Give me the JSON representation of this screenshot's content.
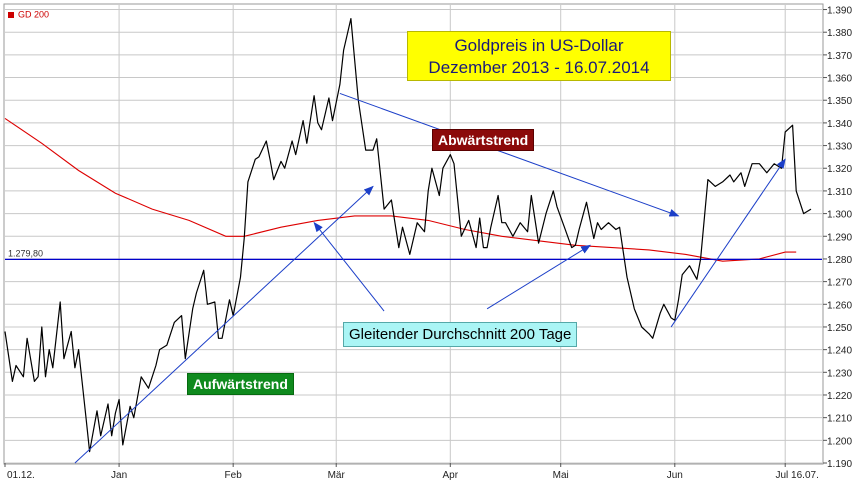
{
  "legend": {
    "label": "GD 200",
    "color": "#cc0000"
  },
  "title": {
    "line1": "Goldpreis in US-Dollar",
    "line2": "Dezember 2013 - 16.07.2014"
  },
  "annotations": {
    "downtrend": "Abwärtstrend",
    "uptrend": "Aufwärtstrend",
    "sma": "Gleitender Durchschnitt 200 Tage"
  },
  "colors": {
    "price": "#000000",
    "sma": "#dd0000",
    "hline": "#0000cc",
    "arrow": "#1c3fc8",
    "grid": "#c8c8c8"
  },
  "chart_data": {
    "type": "line",
    "x_tick_labels": [
      "01.12.",
      "Jan",
      "Feb",
      "Mär",
      "Apr",
      "Mai",
      "Jun",
      "Jul 16.07."
    ],
    "x_tick_days": [
      0,
      31,
      62,
      90,
      121,
      151,
      182,
      212
    ],
    "y_ticks": [
      1190,
      1200,
      1210,
      1220,
      1230,
      1240,
      1250,
      1260,
      1270,
      1280,
      1290,
      1300,
      1310,
      1320,
      1330,
      1340,
      1350,
      1360,
      1370,
      1380,
      1390
    ],
    "y_tick_labels": [
      "1.190",
      "1.200",
      "1.210",
      "1.220",
      "1.230",
      "1.240",
      "1.250",
      "1.260",
      "1.270",
      "1.280",
      "1.290",
      "1.300",
      "1.310",
      "1.320",
      "1.330",
      "1.340",
      "1.350",
      "1.360",
      "1.370",
      "1.380",
      "1.390"
    ],
    "ylim": [
      1190,
      1392
    ],
    "grid": true,
    "hline": {
      "value": 1279.8,
      "label": "1.279,80"
    },
    "series": [
      {
        "name": "GD 200",
        "color": "#dd0000",
        "points": [
          [
            0,
            1342
          ],
          [
            10,
            1331
          ],
          [
            20,
            1319
          ],
          [
            30,
            1309
          ],
          [
            40,
            1302
          ],
          [
            50,
            1297
          ],
          [
            60,
            1290
          ],
          [
            65,
            1290
          ],
          [
            75,
            1294
          ],
          [
            85,
            1297
          ],
          [
            95,
            1299
          ],
          [
            105,
            1299
          ],
          [
            115,
            1297
          ],
          [
            125,
            1293
          ],
          [
            135,
            1290
          ],
          [
            145,
            1288
          ],
          [
            155,
            1286
          ],
          [
            165,
            1285
          ],
          [
            175,
            1284
          ],
          [
            185,
            1282
          ],
          [
            195,
            1279
          ],
          [
            205,
            1280
          ],
          [
            212,
            1283
          ],
          [
            215,
            1283
          ]
        ]
      },
      {
        "name": "",
        "color": "#000000",
        "points": [
          [
            0,
            1248
          ],
          [
            2,
            1226
          ],
          [
            3,
            1233
          ],
          [
            5,
            1228
          ],
          [
            6,
            1245
          ],
          [
            8,
            1226
          ],
          [
            9,
            1228
          ],
          [
            10,
            1250
          ],
          [
            11,
            1228
          ],
          [
            12,
            1240
          ],
          [
            13,
            1232
          ],
          [
            15,
            1261
          ],
          [
            16,
            1236
          ],
          [
            18,
            1248
          ],
          [
            19,
            1232
          ],
          [
            20,
            1240
          ],
          [
            22,
            1210
          ],
          [
            23,
            1195
          ],
          [
            25,
            1213
          ],
          [
            26,
            1202
          ],
          [
            28,
            1216
          ],
          [
            29,
            1202
          ],
          [
            30,
            1212
          ],
          [
            31,
            1218
          ],
          [
            32,
            1198
          ],
          [
            34,
            1215
          ],
          [
            35,
            1210
          ],
          [
            37,
            1228
          ],
          [
            39,
            1223
          ],
          [
            41,
            1233
          ],
          [
            42,
            1240
          ],
          [
            44,
            1242
          ],
          [
            46,
            1252
          ],
          [
            48,
            1255
          ],
          [
            49,
            1236
          ],
          [
            51,
            1258
          ],
          [
            52,
            1265
          ],
          [
            54,
            1275
          ],
          [
            55,
            1260
          ],
          [
            57,
            1261
          ],
          [
            58,
            1245
          ],
          [
            59,
            1245
          ],
          [
            61,
            1262
          ],
          [
            62,
            1255
          ],
          [
            64,
            1272
          ],
          [
            65,
            1289
          ],
          [
            66,
            1314
          ],
          [
            68,
            1324
          ],
          [
            69,
            1325
          ],
          [
            71,
            1332
          ],
          [
            72,
            1324
          ],
          [
            73,
            1315
          ],
          [
            75,
            1323
          ],
          [
            76,
            1320
          ],
          [
            78,
            1332
          ],
          [
            79,
            1326
          ],
          [
            81,
            1341
          ],
          [
            82,
            1331
          ],
          [
            84,
            1352
          ],
          [
            85,
            1340
          ],
          [
            86,
            1337
          ],
          [
            88,
            1351
          ],
          [
            89,
            1341
          ],
          [
            91,
            1357
          ],
          [
            92,
            1372
          ],
          [
            94,
            1386
          ],
          [
            95,
            1368
          ],
          [
            96,
            1350
          ],
          [
            98,
            1328
          ],
          [
            100,
            1328
          ],
          [
            101,
            1333
          ],
          [
            103,
            1302
          ],
          [
            105,
            1306
          ],
          [
            107,
            1285
          ],
          [
            108,
            1294
          ],
          [
            110,
            1282
          ],
          [
            112,
            1296
          ],
          [
            114,
            1292
          ],
          [
            115,
            1310
          ],
          [
            116,
            1320
          ],
          [
            118,
            1308
          ],
          [
            119,
            1320
          ],
          [
            121,
            1326
          ],
          [
            122,
            1322
          ],
          [
            124,
            1290
          ],
          [
            126,
            1297
          ],
          [
            128,
            1285
          ],
          [
            129,
            1298
          ],
          [
            130,
            1285
          ],
          [
            131,
            1285
          ],
          [
            132,
            1294
          ],
          [
            134,
            1308
          ],
          [
            135,
            1296
          ],
          [
            136,
            1296
          ],
          [
            138,
            1290
          ],
          [
            140,
            1296
          ],
          [
            142,
            1292
          ],
          [
            143,
            1308
          ],
          [
            145,
            1287
          ],
          [
            147,
            1300
          ],
          [
            149,
            1310
          ],
          [
            150,
            1303
          ],
          [
            152,
            1294
          ],
          [
            154,
            1285
          ],
          [
            155,
            1286
          ],
          [
            156,
            1293
          ],
          [
            158,
            1305
          ],
          [
            160,
            1289
          ],
          [
            161,
            1296
          ],
          [
            162,
            1293
          ],
          [
            164,
            1296
          ],
          [
            166,
            1293
          ],
          [
            167,
            1294
          ],
          [
            169,
            1272
          ],
          [
            171,
            1258
          ],
          [
            173,
            1250
          ],
          [
            175,
            1247
          ],
          [
            176,
            1245
          ],
          [
            178,
            1256
          ],
          [
            179,
            1260
          ],
          [
            181,
            1254
          ],
          [
            182,
            1253
          ],
          [
            183,
            1262
          ],
          [
            184,
            1273
          ],
          [
            186,
            1277
          ],
          [
            188,
            1271
          ],
          [
            189,
            1280
          ],
          [
            191,
            1315
          ],
          [
            193,
            1312
          ],
          [
            195,
            1314
          ],
          [
            197,
            1317
          ],
          [
            198,
            1314
          ],
          [
            200,
            1318
          ],
          [
            201,
            1312
          ],
          [
            203,
            1322
          ],
          [
            205,
            1322
          ],
          [
            207,
            1318
          ],
          [
            209,
            1322
          ],
          [
            211,
            1320
          ],
          [
            212,
            1336
          ],
          [
            214,
            1339
          ],
          [
            215,
            1310
          ],
          [
            217,
            1300
          ],
          [
            219,
            1302
          ]
        ]
      }
    ],
    "annotations": [
      {
        "type": "arrow",
        "from": [
          91,
          1353
        ],
        "to": [
          183,
          1299
        ]
      },
      {
        "type": "arrow",
        "from": [
          19,
          1190
        ],
        "to": [
          100,
          1312
        ]
      },
      {
        "type": "arrow",
        "from": [
          181,
          1250
        ],
        "to": [
          212,
          1324
        ]
      },
      {
        "type": "arrow",
        "from": [
          103,
          1257
        ],
        "to": [
          84,
          1296
        ]
      },
      {
        "type": "arrow",
        "from": [
          131,
          1258
        ],
        "to": [
          159,
          1286
        ]
      }
    ]
  }
}
